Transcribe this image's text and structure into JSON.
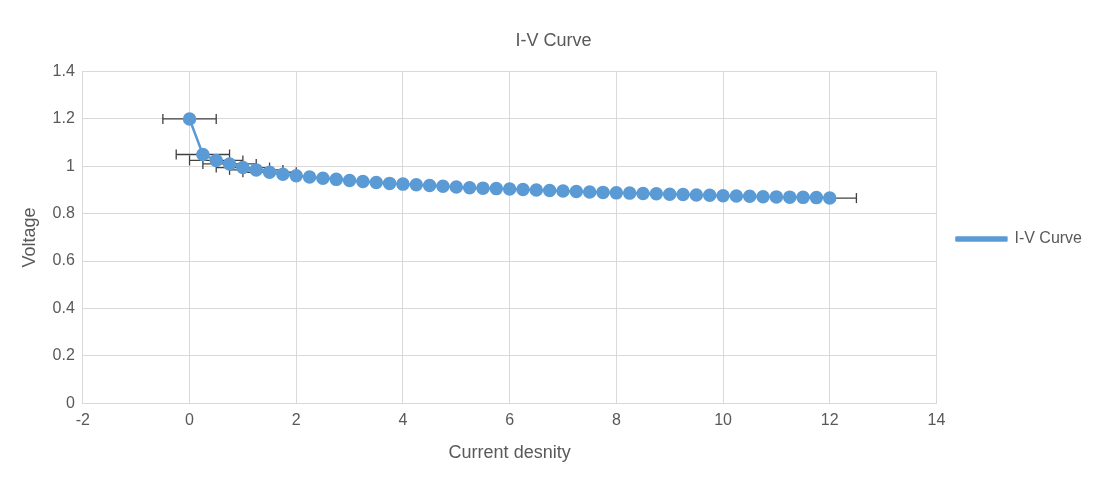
{
  "chart_data": {
    "type": "line",
    "title": "I-V Curve",
    "xlabel": "Current desnity",
    "ylabel": "Voltage",
    "x": [
      0,
      0.25,
      0.5,
      0.75,
      1,
      1.25,
      1.5,
      1.75,
      2,
      2.25,
      2.5,
      2.75,
      3,
      3.25,
      3.5,
      3.75,
      4,
      4.25,
      4.5,
      4.75,
      5,
      5.25,
      5.5,
      5.75,
      6,
      6.25,
      6.5,
      6.75,
      7,
      7.25,
      7.5,
      7.75,
      8,
      8.25,
      8.5,
      8.75,
      9,
      9.25,
      9.5,
      9.75,
      10,
      10.25,
      10.5,
      10.75,
      11,
      11.25,
      11.5,
      11.75,
      12
    ],
    "series": [
      {
        "name": "I-V Curve",
        "color": "#5b9bd5",
        "values": [
          1.2,
          1.05,
          1.025,
          1.01,
          0.995,
          0.985,
          0.975,
          0.967,
          0.96,
          0.955,
          0.95,
          0.945,
          0.94,
          0.936,
          0.932,
          0.928,
          0.925,
          0.922,
          0.919,
          0.916,
          0.913,
          0.91,
          0.908,
          0.906,
          0.904,
          0.902,
          0.9,
          0.898,
          0.896,
          0.894,
          0.892,
          0.89,
          0.888,
          0.887,
          0.885,
          0.884,
          0.882,
          0.881,
          0.879,
          0.878,
          0.876,
          0.875,
          0.874,
          0.872,
          0.871,
          0.87,
          0.869,
          0.868,
          0.866
        ],
        "xerrors": [
          0.5,
          0.5,
          0.5,
          0.5,
          0.5,
          0.5,
          0.5,
          null,
          null,
          null,
          null,
          null,
          null,
          null,
          null,
          null,
          null,
          null,
          null,
          null,
          null,
          null,
          null,
          null,
          null,
          null,
          null,
          null,
          null,
          null,
          null,
          null,
          null,
          null,
          null,
          null,
          null,
          null,
          null,
          null,
          null,
          null,
          null,
          null,
          null,
          null,
          null,
          null,
          0.5
        ]
      }
    ],
    "xlim": [
      -2,
      14
    ],
    "xticks": [
      -2,
      0,
      2,
      4,
      6,
      8,
      10,
      12,
      14
    ],
    "ylim": [
      0,
      1.4
    ],
    "yticks": [
      0,
      0.2,
      0.4,
      0.6,
      0.8,
      1,
      1.2,
      1.4
    ],
    "grid": true,
    "legend": "right",
    "marker": "circle",
    "line_style": "solid"
  }
}
